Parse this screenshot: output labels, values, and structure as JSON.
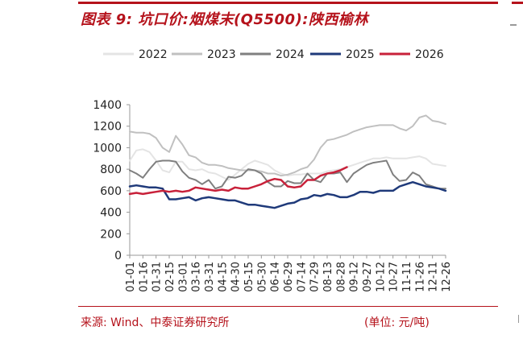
{
  "header": {
    "title": "图表 9:  坑口价:烟煤末(Q5500):陕西榆林"
  },
  "footer": {
    "source": "来源:    Wind、中泰证券研究所",
    "unit": "(单位:  元/吨)"
  },
  "chart_data": {
    "type": "line",
    "title": "图表 9:  坑口价:烟煤末(Q5500):陕西榆林",
    "xlabel": "",
    "ylabel": "",
    "ylim": [
      0,
      1400
    ],
    "yticks": [
      0,
      200,
      400,
      600,
      800,
      1000,
      1200,
      1400
    ],
    "grid": false,
    "legend_position": "top",
    "x": [
      "01-01",
      "01-08",
      "01-16",
      "01-23",
      "01-31",
      "02-07",
      "02-15",
      "02-22",
      "03-01",
      "03-08",
      "03-16",
      "03-23",
      "03-31",
      "04-07",
      "04-15",
      "04-22",
      "04-30",
      "05-07",
      "05-15",
      "05-22",
      "05-30",
      "06-06",
      "06-14",
      "06-21",
      "06-29",
      "07-06",
      "07-14",
      "07-21",
      "07-29",
      "08-05",
      "08-13",
      "08-20",
      "08-28",
      "09-04",
      "09-12",
      "09-19",
      "09-27",
      "10-04",
      "10-12",
      "10-19",
      "10-27",
      "11-03",
      "11-11",
      "11-18",
      "11-26",
      "12-03",
      "12-11",
      "12-18",
      "12-26"
    ],
    "xtick_labels": [
      "01-01",
      "01-16",
      "01-31",
      "02-15",
      "03-01",
      "03-16",
      "03-31",
      "04-15",
      "04-30",
      "05-15",
      "05-30",
      "06-14",
      "06-29",
      "07-14",
      "07-29",
      "08-13",
      "08-28",
      "09-12",
      "09-27",
      "10-12",
      "10-27",
      "11-11",
      "11-26",
      "12-11",
      "12-26"
    ],
    "series": [
      {
        "name": "2022",
        "color": "#e4e4e4",
        "width": 2,
        "values": [
          880,
          975,
          985,
          960,
          880,
          790,
          770,
          870,
          870,
          800,
          790,
          800,
          770,
          760,
          730,
          700,
          750,
          800,
          850,
          880,
          860,
          840,
          790,
          760,
          740,
          750,
          750,
          760,
          760,
          760,
          780,
          790,
          800,
          820,
          840,
          860,
          880,
          900,
          900,
          910,
          900,
          900,
          900,
          910,
          920,
          900,
          850,
          840,
          830
        ]
      },
      {
        "name": "2023",
        "color": "#c0c0c0",
        "width": 2,
        "values": [
          1150,
          1140,
          1140,
          1130,
          1090,
          1000,
          960,
          1110,
          1030,
          930,
          910,
          860,
          840,
          840,
          830,
          810,
          800,
          790,
          790,
          790,
          780,
          760,
          760,
          740,
          750,
          770,
          800,
          820,
          890,
          1000,
          1070,
          1080,
          1100,
          1120,
          1150,
          1170,
          1190,
          1200,
          1210,
          1210,
          1210,
          1180,
          1160,
          1200,
          1280,
          1300,
          1250,
          1240,
          1220
        ]
      },
      {
        "name": "2024",
        "color": "#7f7f7f",
        "width": 2,
        "values": [
          790,
          760,
          720,
          800,
          870,
          880,
          880,
          870,
          780,
          720,
          700,
          660,
          700,
          620,
          640,
          730,
          720,
          740,
          800,
          790,
          760,
          680,
          640,
          640,
          690,
          670,
          670,
          760,
          700,
          680,
          760,
          760,
          770,
          680,
          760,
          800,
          840,
          860,
          870,
          880,
          750,
          690,
          700,
          770,
          740,
          660,
          640,
          620,
          620
        ]
      },
      {
        "name": "2025",
        "color": "#1f3a7a",
        "width": 2.5,
        "values": [
          640,
          650,
          640,
          630,
          630,
          620,
          520,
          520,
          530,
          540,
          510,
          530,
          540,
          530,
          520,
          510,
          510,
          490,
          470,
          470,
          460,
          450,
          440,
          460,
          480,
          490,
          520,
          530,
          560,
          550,
          570,
          560,
          540,
          540,
          560,
          590,
          590,
          580,
          600,
          600,
          600,
          640,
          660,
          680,
          660,
          640,
          630,
          620,
          600
        ]
      },
      {
        "name": "2026",
        "color": "#c8213a",
        "width": 2.5,
        "values": [
          570,
          580,
          570,
          580,
          590,
          600,
          590,
          600,
          590,
          600,
          630,
          620,
          610,
          600,
          610,
          600,
          630,
          620,
          620,
          640,
          660,
          690,
          710,
          700,
          640,
          630,
          640,
          700,
          700,
          740,
          760,
          770,
          790,
          820,
          null,
          null,
          null,
          null,
          null,
          null,
          null,
          null,
          null,
          null,
          null,
          null,
          null,
          null,
          null
        ]
      }
    ]
  }
}
